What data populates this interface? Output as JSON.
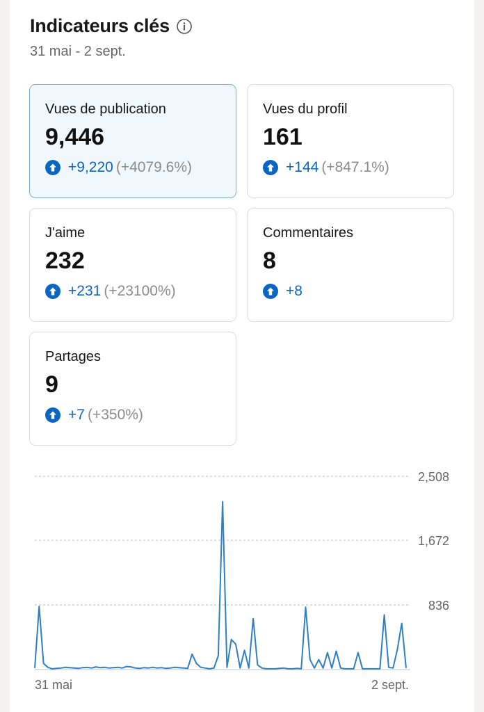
{
  "header": {
    "title": "Indicateurs clés",
    "date_range": "31 mai - 2 sept.",
    "info_icon": "info-circle-icon"
  },
  "cards": [
    {
      "label": "Vues de publication",
      "value": "9,446",
      "delta": "+9,220",
      "pct": "(+4079.6%)",
      "active": true
    },
    {
      "label": "Vues du profil",
      "value": "161",
      "delta": "+144",
      "pct": "(+847.1%)"
    },
    {
      "label": "J'aime",
      "value": "232",
      "delta": "+231",
      "pct": "(+23100%)"
    },
    {
      "label": "Commentaires",
      "value": "8",
      "delta": "+8",
      "pct": ""
    },
    {
      "label": "Partages",
      "value": "9",
      "delta": "+7",
      "pct": "(+350%)"
    }
  ],
  "colors": {
    "accent": "#0a66c2",
    "line": "#2f7fc1",
    "active_bg": "#f1f8fd",
    "active_border": "#79aed6"
  },
  "chart_data": {
    "type": "line",
    "x_start_label": "31 mai",
    "x_end_label": "2 sept.",
    "y_ticks": [
      "836",
      "1,672",
      "2,508"
    ],
    "ylim": [
      0,
      2508
    ],
    "grid": true,
    "series": [
      {
        "values": [
          20,
          820,
          80,
          30,
          10,
          15,
          20,
          30,
          25,
          20,
          15,
          25,
          30,
          20,
          35,
          25,
          30,
          20,
          25,
          30,
          20,
          40,
          35,
          20,
          15,
          25,
          20,
          30,
          20,
          25,
          15,
          20,
          30,
          25,
          20,
          15,
          200,
          80,
          30,
          20,
          10,
          20,
          180,
          2180,
          30,
          390,
          330,
          20,
          250,
          20,
          660,
          60,
          20,
          10,
          10,
          10,
          15,
          20,
          10,
          10,
          15,
          10,
          810,
          130,
          20,
          130,
          20,
          220,
          20,
          240,
          20,
          10,
          10,
          10,
          220,
          10,
          10,
          10,
          10,
          10,
          710,
          30,
          20,
          260,
          600,
          20
        ]
      }
    ]
  }
}
